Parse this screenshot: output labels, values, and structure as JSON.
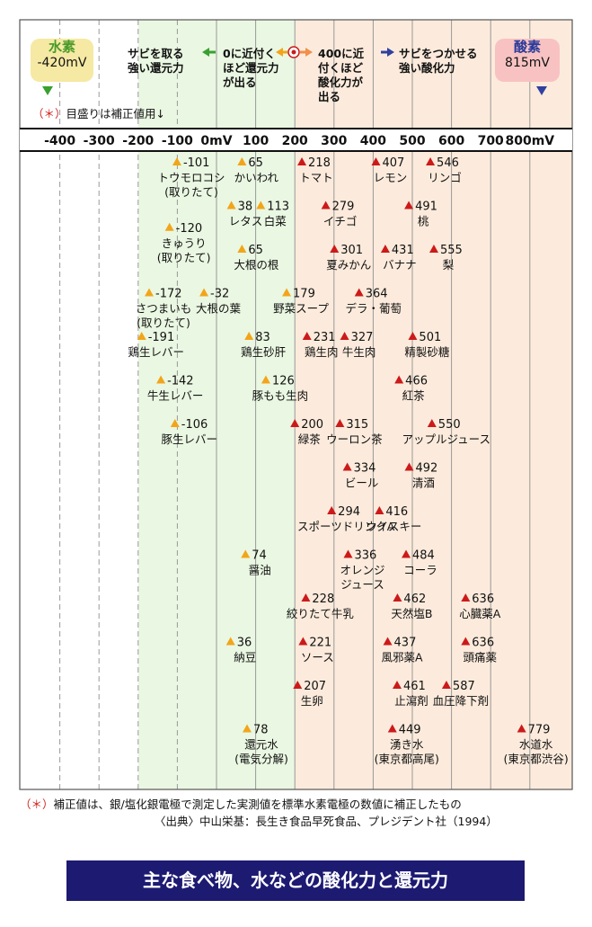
{
  "header": {
    "hydrogen_label": "水素",
    "hydrogen_value": "-420mV",
    "oxygen_label": "酸素",
    "oxygen_value": "815mV",
    "note": "目盛りは補正値用↓",
    "note_mark": "（＊）",
    "strong_reduction": "サビを取る\n強い還元力",
    "near_zero": "0に近付く\nほど還元力\nが出る",
    "near_400": "400に近\n付くほど\n酸化力が\n出る",
    "strong_oxidation": "サビをつかせる\n強い酸化力",
    "colors": {
      "reduction_bg": "#eaf7e2",
      "oxidation_bg": "#fcebdc",
      "hydrogen_box": "#f5e9a3",
      "oxygen_box": "#f8c2c2"
    }
  },
  "chart_data": {
    "type": "scatter",
    "xlim": [
      -450,
      850
    ],
    "xticks": [
      "-400",
      "-300",
      "-200",
      "-100",
      "0mV",
      "100",
      "200",
      "300",
      "400",
      "500",
      "600",
      "700",
      "800mV"
    ],
    "tick_values": [
      -400,
      -300,
      -200,
      -100,
      0,
      100,
      200,
      300,
      400,
      500,
      600,
      700,
      800
    ],
    "marker_colors": {
      "reduction": "#f2a51a",
      "oxidation": "#cc1a1a"
    },
    "items": [
      {
        "value": -101,
        "label": "-101",
        "name": "トウモロコシ\n(取りたて)",
        "row": 0
      },
      {
        "value": 65,
        "label": "65",
        "name": "かいわれ",
        "row": 0
      },
      {
        "value": 218,
        "label": "218",
        "name": "トマト",
        "row": 0
      },
      {
        "value": 407,
        "label": "407",
        "name": "レモン",
        "row": 0
      },
      {
        "value": 546,
        "label": "546",
        "name": "リンゴ",
        "row": 0
      },
      {
        "value": 38,
        "label": "38",
        "name": "レタス",
        "row": 1
      },
      {
        "value": 113,
        "label": "113",
        "name": "白菜",
        "row": 1
      },
      {
        "value": 279,
        "label": "279",
        "name": "イチゴ",
        "row": 1
      },
      {
        "value": 491,
        "label": "491",
        "name": "桃",
        "row": 1
      },
      {
        "value": -120,
        "label": "-120",
        "name": "きゅうり\n(取りたて)",
        "row": 1.5
      },
      {
        "value": 65,
        "label": "65",
        "name": "大根の根",
        "row": 2
      },
      {
        "value": 301,
        "label": "301",
        "name": "夏みかん",
        "row": 2
      },
      {
        "value": 431,
        "label": "431",
        "name": "バナナ",
        "row": 2
      },
      {
        "value": 555,
        "label": "555",
        "name": "梨",
        "row": 2
      },
      {
        "value": -172,
        "label": "-172",
        "name": "さつまいも\n(取りたて)",
        "row": 3
      },
      {
        "value": -32,
        "label": "-32",
        "name": "大根の葉",
        "row": 3
      },
      {
        "value": 179,
        "label": "179",
        "name": "野菜スープ",
        "row": 3
      },
      {
        "value": 364,
        "label": "364",
        "name": "デラ・葡萄",
        "row": 3
      },
      {
        "value": -191,
        "label": "-191",
        "name": "鶏生レバー",
        "row": 4
      },
      {
        "value": 83,
        "label": "83",
        "name": "鶏生砂肝",
        "row": 4
      },
      {
        "value": 231,
        "label": "231",
        "name": "鶏生肉",
        "row": 4
      },
      {
        "value": 327,
        "label": "327",
        "name": "牛生肉",
        "row": 4
      },
      {
        "value": 501,
        "label": "501",
        "name": "精製砂糖",
        "row": 4
      },
      {
        "value": -142,
        "label": "-142",
        "name": "牛生レバー",
        "row": 5
      },
      {
        "value": 126,
        "label": "126",
        "name": "豚もも生肉",
        "row": 5
      },
      {
        "value": 466,
        "label": "466",
        "name": "紅茶",
        "row": 5
      },
      {
        "value": -106,
        "label": "-106",
        "name": "豚生レバー",
        "row": 6
      },
      {
        "value": 200,
        "label": "200",
        "name": "緑茶",
        "row": 6
      },
      {
        "value": 315,
        "label": "315",
        "name": "ウーロン茶",
        "row": 6
      },
      {
        "value": 550,
        "label": "550",
        "name": "アップルジュース",
        "row": 6
      },
      {
        "value": 334,
        "label": "334",
        "name": "ビール",
        "row": 7
      },
      {
        "value": 492,
        "label": "492",
        "name": "清酒",
        "row": 7
      },
      {
        "value": 294,
        "label": "294",
        "name": "スポーツドリンクA",
        "row": 8
      },
      {
        "value": 416,
        "label": "416",
        "name": "ウイスキー",
        "row": 8
      },
      {
        "value": 74,
        "label": "74",
        "name": "醤油",
        "row": 9
      },
      {
        "value": 336,
        "label": "336",
        "name": "オレンジ\nジュース",
        "row": 9
      },
      {
        "value": 484,
        "label": "484",
        "name": "コーラ",
        "row": 9
      },
      {
        "value": 228,
        "label": "228",
        "name": "絞りたて牛乳",
        "row": 10
      },
      {
        "value": 462,
        "label": "462",
        "name": "天然塩B",
        "row": 10
      },
      {
        "value": 636,
        "label": "636",
        "name": "心臓薬A",
        "row": 10
      },
      {
        "value": 36,
        "label": "36",
        "name": "納豆",
        "row": 11
      },
      {
        "value": 221,
        "label": "221",
        "name": "ソース",
        "row": 11
      },
      {
        "value": 437,
        "label": "437",
        "name": "風邪薬A",
        "row": 11
      },
      {
        "value": 636,
        "label": "636",
        "name": "頭痛薬",
        "row": 11
      },
      {
        "value": 207,
        "label": "207",
        "name": "生卵",
        "row": 12
      },
      {
        "value": 461,
        "label": "461",
        "name": "止瀉剤",
        "row": 12
      },
      {
        "value": 587,
        "label": "587",
        "name": "血圧降下剤",
        "row": 12
      },
      {
        "value": 78,
        "label": "78",
        "name": "還元水\n(電気分解)",
        "row": 13
      },
      {
        "value": 449,
        "label": "449",
        "name": "湧き水\n(東京都高尾)",
        "row": 13
      },
      {
        "value": 779,
        "label": "779",
        "name": "水道水\n(東京都渋谷)",
        "row": 13
      }
    ]
  },
  "footer": {
    "mark": "（＊）",
    "note": "補正値は、銀/塩化銀電極で測定した実測値を標準水素電極の数値に補正したもの",
    "source": "〈出典〉中山栄基：長生き食品早死食品、プレジデント社（1994）"
  },
  "title": "主な食べ物、水などの酸化力と還元力"
}
